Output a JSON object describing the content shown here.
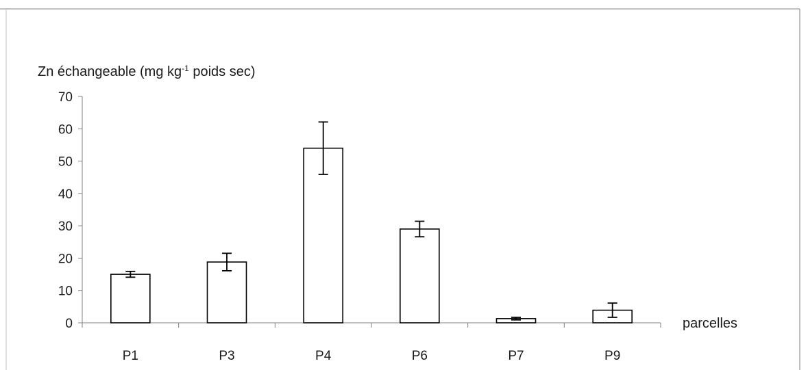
{
  "chart_data": {
    "type": "bar",
    "title": "",
    "ylabel": {
      "main": "Zn échangeable (mg  kg",
      "superscript": "-1",
      "suffix": " poids sec)"
    },
    "xlabel": "parcelles",
    "categories": [
      "P1",
      "P3",
      "P4",
      "P6",
      "P7",
      "P9"
    ],
    "series": [
      {
        "values": [
          15,
          18.8,
          54,
          29,
          1.3,
          3.9
        ],
        "errors": [
          0.9,
          2.7,
          8.1,
          2.4,
          0.4,
          2.2
        ]
      }
    ],
    "ylim": [
      0,
      70
    ],
    "yticks": [
      0,
      10,
      20,
      30,
      40,
      50,
      60,
      70
    ],
    "grid": false,
    "legend": "none",
    "colors": {
      "bar_fill": "#ffffff",
      "bar_stroke": "#000000",
      "axis": "#808080",
      "frame": "#808080"
    }
  }
}
